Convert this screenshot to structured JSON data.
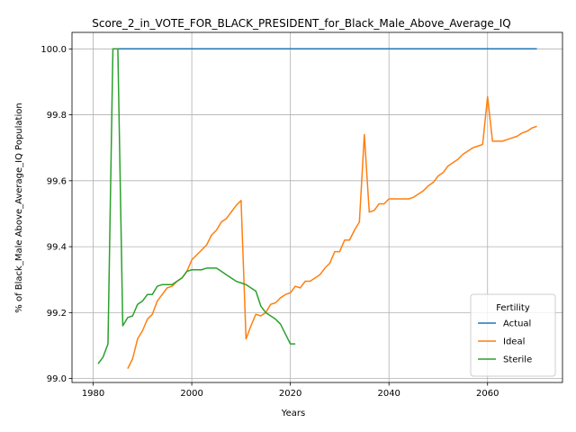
{
  "chart_data": {
    "type": "line",
    "title": "Score_2_in_VOTE_FOR_BLACK_PRESIDENT_for_Black_Male_Above_Average_IQ",
    "xlabel": "Years",
    "ylabel": "% of Black_Male Above_Average_IQ Population",
    "xlim": [
      1975.7,
      2075.2
    ],
    "ylim": [
      98.988,
      100.05
    ],
    "xticks": [
      1980,
      2000,
      2020,
      2040,
      2060
    ],
    "xtick_labels": [
      "1980",
      "2000",
      "2020",
      "2040",
      "2060"
    ],
    "yticks": [
      99.0,
      99.2,
      99.4,
      99.6,
      99.8,
      100.0
    ],
    "ytick_labels": [
      "99.0",
      "99.2",
      "99.4",
      "99.6",
      "99.8",
      "100.0"
    ],
    "grid": true,
    "legend": {
      "title": "Fertility",
      "location": "lower-right"
    },
    "series": [
      {
        "name": "Actual",
        "color": "#1f77b4",
        "x": [
          1984,
          2070
        ],
        "y": [
          100.0,
          100.0
        ]
      },
      {
        "name": "Ideal",
        "color": "#ff7f0e",
        "x": [
          1987,
          1988,
          1989,
          1990,
          1991,
          1992,
          1993,
          1994,
          1995,
          1996,
          1997,
          1998,
          1999,
          2000,
          2001,
          2002,
          2003,
          2004,
          2005,
          2006,
          2007,
          2008,
          2009,
          2010,
          2011,
          2012,
          2013,
          2014,
          2015,
          2016,
          2017,
          2018,
          2019,
          2020,
          2021,
          2022,
          2023,
          2024,
          2025,
          2026,
          2027,
          2028,
          2029,
          2030,
          2031,
          2032,
          2033,
          2034,
          2035,
          2036,
          2037,
          2038,
          2039,
          2040,
          2041,
          2042,
          2043,
          2044,
          2045,
          2046,
          2047,
          2048,
          2049,
          2050,
          2051,
          2052,
          2053,
          2054,
          2055,
          2056,
          2057,
          2058,
          2059,
          2060,
          2061,
          2062,
          2063,
          2064,
          2065,
          2066,
          2067,
          2068,
          2069,
          2070
        ],
        "y": [
          99.03,
          99.06,
          99.12,
          99.145,
          99.18,
          99.195,
          99.235,
          99.255,
          99.275,
          99.28,
          99.295,
          99.305,
          99.325,
          99.36,
          99.375,
          99.39,
          99.405,
          99.435,
          99.45,
          99.475,
          99.485,
          99.505,
          99.525,
          99.54,
          99.12,
          99.16,
          99.195,
          99.19,
          99.2,
          99.225,
          99.23,
          99.245,
          99.255,
          99.26,
          99.28,
          99.275,
          99.295,
          99.295,
          99.305,
          99.315,
          99.335,
          99.35,
          99.385,
          99.385,
          99.42,
          99.42,
          99.45,
          99.475,
          99.74,
          99.505,
          99.51,
          99.53,
          99.53,
          99.545,
          99.545,
          99.545,
          99.545,
          99.545,
          99.55,
          99.56,
          99.57,
          99.585,
          99.595,
          99.615,
          99.625,
          99.645,
          99.655,
          99.665,
          99.68,
          99.69,
          99.7,
          99.705,
          99.71,
          99.855,
          99.72,
          99.72,
          99.72,
          99.725,
          99.73,
          99.735,
          99.745,
          99.75,
          99.76,
          99.765
        ]
      },
      {
        "name": "Sterile",
        "color": "#2ca02c",
        "x": [
          1981,
          1982,
          1983,
          1984,
          1985,
          1986,
          1987,
          1988,
          1989,
          1990,
          1991,
          1992,
          1993,
          1994,
          1995,
          1996,
          1997,
          1998,
          1999,
          2000,
          2001,
          2002,
          2003,
          2004,
          2005,
          2006,
          2007,
          2008,
          2009,
          2010,
          2011,
          2012,
          2013,
          2014,
          2015,
          2016,
          2017,
          2018,
          2019,
          2020,
          2021
        ],
        "y": [
          99.045,
          99.065,
          99.105,
          100.0,
          100.0,
          99.16,
          99.185,
          99.19,
          99.225,
          99.235,
          99.255,
          99.255,
          99.28,
          99.285,
          99.285,
          99.285,
          99.295,
          99.305,
          99.325,
          99.33,
          99.33,
          99.33,
          99.335,
          99.335,
          99.335,
          99.325,
          99.315,
          99.305,
          99.295,
          99.29,
          99.285,
          99.275,
          99.265,
          99.22,
          99.2,
          99.19,
          99.18,
          99.165,
          99.135,
          99.105,
          99.105
        ]
      }
    ]
  }
}
